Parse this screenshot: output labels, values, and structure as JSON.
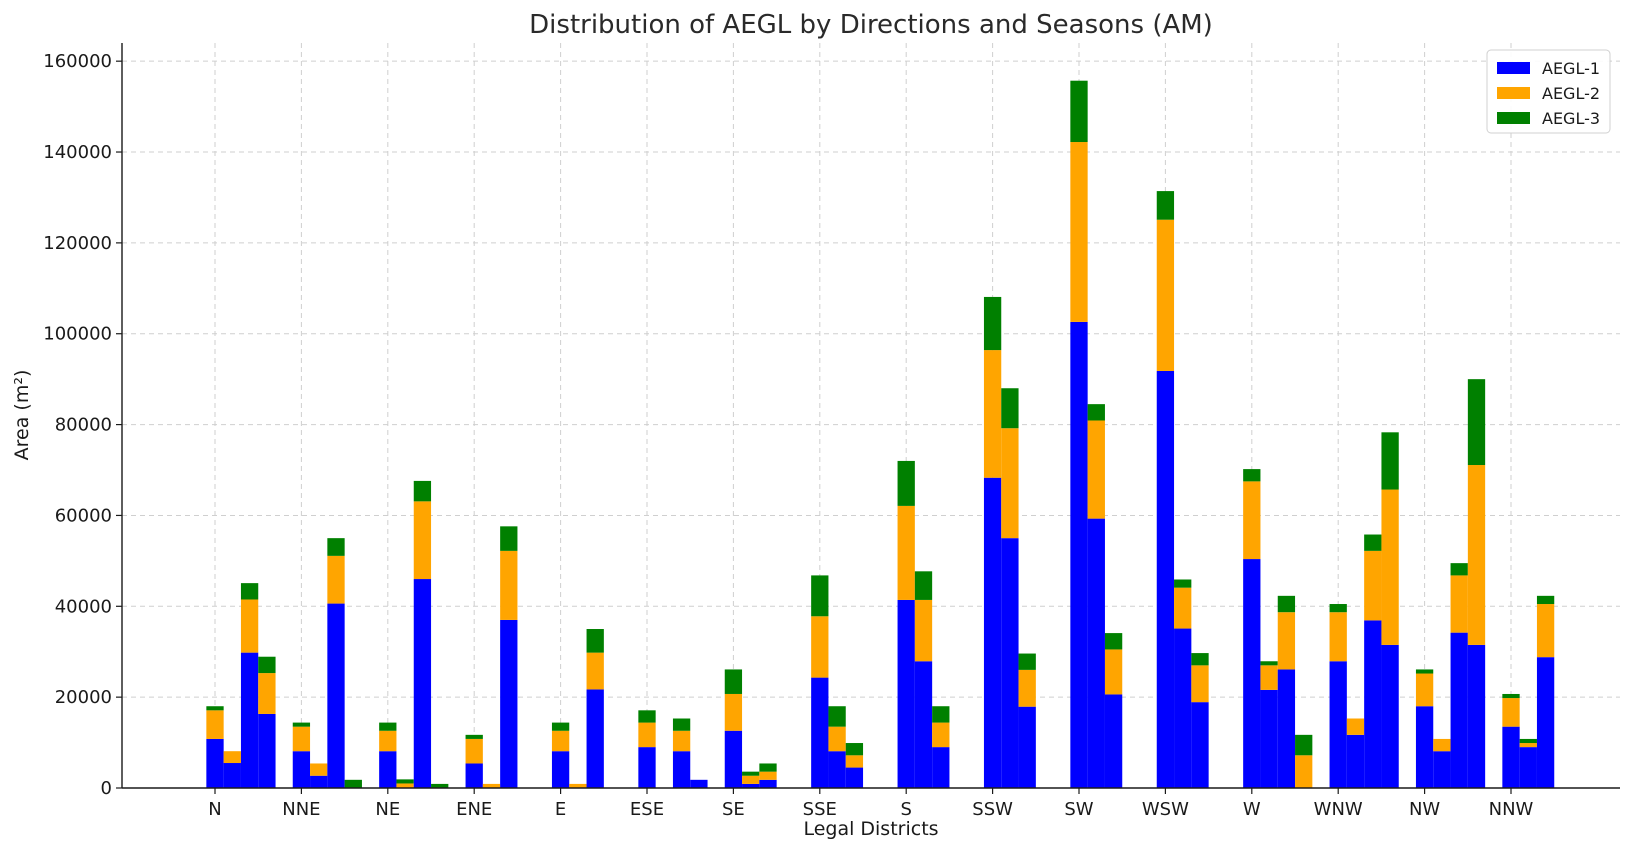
{
  "chart_data": {
    "type": "bar",
    "stacked": true,
    "title": "Distribution of AEGL by Directions and Seasons (AM)",
    "xlabel": "Legal Districts",
    "ylabel": "Area (m²)",
    "ylim": [
      0,
      164000
    ],
    "yticks": [
      0,
      20000,
      40000,
      60000,
      80000,
      100000,
      120000,
      140000,
      160000
    ],
    "ytick_labels": [
      "0",
      "20000",
      "40000",
      "60000",
      "80000",
      "100000",
      "120000",
      "140000",
      "160000"
    ],
    "grid": true,
    "legend_position": "top-right",
    "bars_per_category": 4,
    "categories": [
      "N",
      "NNE",
      "NE",
      "ENE",
      "E",
      "ESE",
      "SE",
      "SSE",
      "S",
      "SSW",
      "SW",
      "WSW",
      "W",
      "WNW",
      "NW",
      "NNW"
    ],
    "series": [
      {
        "name": "AEGL-1",
        "color": "#0000ff",
        "values": [
          [
            10800,
            5500,
            29800,
            16300
          ],
          [
            8100,
            2700,
            40600,
            0
          ],
          [
            8100,
            0,
            46000,
            0
          ],
          [
            5400,
            0,
            37000,
            0
          ],
          [
            8100,
            0,
            21700,
            0
          ],
          [
            9000,
            0,
            8100,
            1800
          ],
          [
            12600,
            900,
            1800,
            0
          ],
          [
            24300,
            8100,
            4500,
            0
          ],
          [
            41400,
            27900,
            9000,
            0
          ],
          [
            68300,
            55000,
            17900,
            0
          ],
          [
            102600,
            59300,
            20600,
            0
          ],
          [
            91800,
            35100,
            18900,
            0
          ],
          [
            50400,
            21600,
            26100,
            0
          ],
          [
            27900,
            11700,
            36900,
            31500
          ],
          [
            18000,
            8100,
            34200,
            31500
          ],
          [
            13500,
            9000,
            28800,
            0
          ]
        ]
      },
      {
        "name": "AEGL-2",
        "color": "#ffa500",
        "values": [
          [
            6300,
            2600,
            11700,
            9000
          ],
          [
            5400,
            2700,
            10500,
            0
          ],
          [
            4500,
            1000,
            17100,
            0
          ],
          [
            5400,
            900,
            15200,
            0
          ],
          [
            4500,
            900,
            8100,
            0
          ],
          [
            5400,
            0,
            4500,
            0
          ],
          [
            8100,
            1800,
            1800,
            0
          ],
          [
            13500,
            5400,
            2700,
            0
          ],
          [
            20700,
            13500,
            5400,
            0
          ],
          [
            28100,
            24200,
            8100,
            0
          ],
          [
            39600,
            21600,
            9900,
            0
          ],
          [
            33300,
            9000,
            8100,
            0
          ],
          [
            17100,
            5400,
            12600,
            7200
          ],
          [
            10800,
            3600,
            15300,
            34200
          ],
          [
            7200,
            2700,
            12600,
            39600
          ],
          [
            6300,
            900,
            11700,
            0
          ]
        ]
      },
      {
        "name": "AEGL-3",
        "color": "#008000",
        "values": [
          [
            900,
            0,
            3600,
            3600
          ],
          [
            900,
            0,
            3900,
            1800
          ],
          [
            1800,
            900,
            4500,
            900
          ],
          [
            900,
            0,
            5400,
            0
          ],
          [
            1800,
            0,
            5200,
            0
          ],
          [
            2700,
            0,
            2700,
            0
          ],
          [
            5400,
            900,
            1800,
            0
          ],
          [
            9000,
            4500,
            2700,
            0
          ],
          [
            9900,
            6300,
            3600,
            0
          ],
          [
            11700,
            8800,
            3600,
            0
          ],
          [
            13500,
            3600,
            3600,
            0
          ],
          [
            6300,
            1800,
            2700,
            0
          ],
          [
            2700,
            900,
            3600,
            4500
          ],
          [
            1800,
            0,
            3600,
            12600
          ],
          [
            900,
            0,
            2700,
            18900
          ],
          [
            900,
            900,
            1800,
            0
          ]
        ]
      }
    ]
  }
}
